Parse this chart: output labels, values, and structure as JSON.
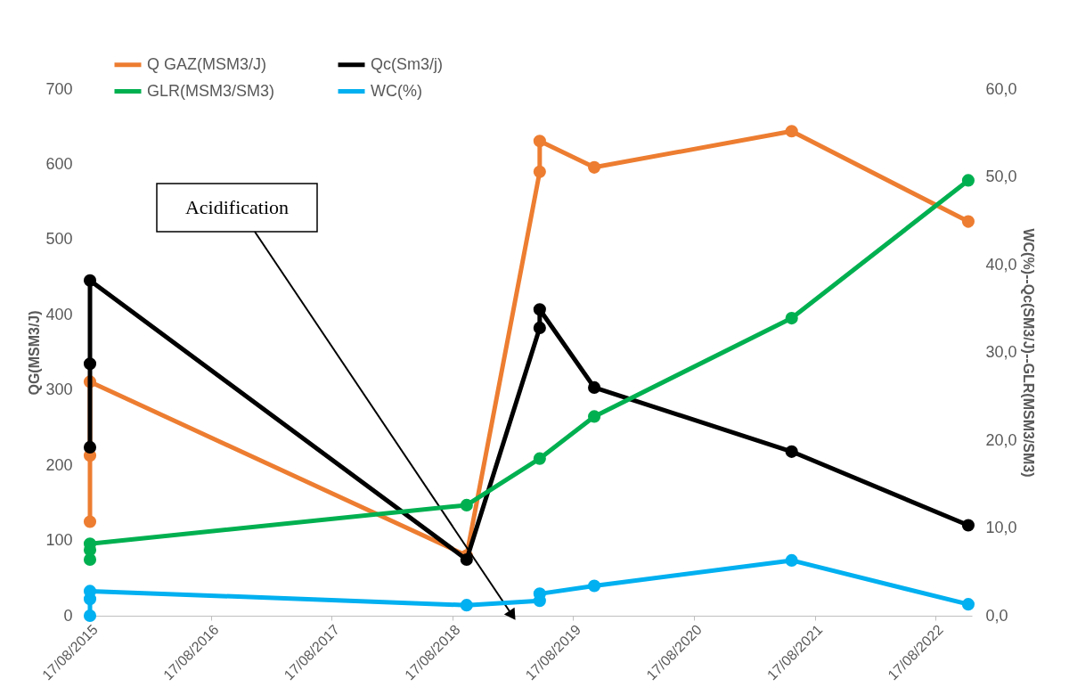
{
  "chart_data": {
    "type": "line",
    "ylabel": "QG(MSM3/J)",
    "y2label": "WC(%)--Qc(SM3/J)--GLR(MSM3/SM3)",
    "xlim": [
      "2015-08-17",
      "2022-12-05"
    ],
    "xticks": [
      {
        "value": "2015-08-17",
        "label": "17/08/2015"
      },
      {
        "value": "2016-08-17",
        "label": "17/08/2016"
      },
      {
        "value": "2017-08-17",
        "label": "17/08/2017"
      },
      {
        "value": "2018-08-17",
        "label": "17/08/2018"
      },
      {
        "value": "2019-08-17",
        "label": "17/08/2019"
      },
      {
        "value": "2020-08-17",
        "label": "17/08/2020"
      },
      {
        "value": "2021-08-17",
        "label": "17/08/2021"
      },
      {
        "value": "2022-08-17",
        "label": "17/08/2022"
      }
    ],
    "ylim": [
      0,
      700
    ],
    "yticks": [
      0,
      100,
      200,
      300,
      400,
      500,
      600,
      700
    ],
    "y2lim": [
      0,
      60
    ],
    "y2ticks": [
      {
        "value": 0,
        "label": "0,0"
      },
      {
        "value": 10,
        "label": "10,0"
      },
      {
        "value": 20,
        "label": "20,0"
      },
      {
        "value": 30,
        "label": "30,0"
      },
      {
        "value": 40,
        "label": "40,0"
      },
      {
        "value": 50,
        "label": "50,0"
      },
      {
        "value": 60,
        "label": "60,0"
      }
    ],
    "series": [
      {
        "name": "Q  GAZ(MSM3/J)",
        "color": "#ed7d31",
        "x": [
          "2015-08-17",
          "2015-08-17",
          "2015-08-17",
          "2018-09-29",
          "2019-05-08",
          "2019-05-08",
          "2019-10-20",
          "2021-06-08",
          "2022-11-24"
        ],
        "values": [
          125,
          213,
          311,
          80,
          590,
          631,
          596,
          644,
          524
        ]
      },
      {
        "name": "Qc(Sm3/j)",
        "color": "#000000",
        "axis": "y2",
        "x": [
          "2015-08-17",
          "2015-08-17",
          "2015-08-17",
          "2018-09-29",
          "2019-05-08",
          "2019-05-08",
          "2019-10-20",
          "2021-06-08",
          "2022-11-24"
        ],
        "values": [
          28.7,
          19.2,
          38.2,
          6.4,
          32.8,
          34.9,
          26.0,
          18.7,
          10.3
        ]
      },
      {
        "name": "GLR(MSM3/SM3)",
        "color": "#00b050",
        "axis": "y2",
        "x": [
          "2015-08-17",
          "2015-08-17",
          "2015-08-17",
          "2018-09-29",
          "2019-05-08",
          "2019-10-20",
          "2021-06-08",
          "2022-11-24"
        ],
        "values": [
          6.4,
          7.5,
          8.2,
          12.6,
          17.9,
          22.7,
          33.9,
          49.6
        ]
      },
      {
        "name": "WC(%)",
        "color": "#00b0f0",
        "axis": "y2",
        "x": [
          "2015-08-17",
          "2015-08-17",
          "2015-08-17",
          "2018-09-29",
          "2019-05-08",
          "2019-05-08",
          "2019-10-20",
          "2021-06-08",
          "2022-11-24"
        ],
        "values": [
          0.0,
          1.9,
          2.8,
          1.2,
          1.7,
          2.5,
          3.4,
          6.3,
          1.3
        ]
      }
    ],
    "annotations": [
      "Acidification"
    ],
    "legend": "top",
    "marker": "circle",
    "line_style": "solid",
    "grid": false
  }
}
